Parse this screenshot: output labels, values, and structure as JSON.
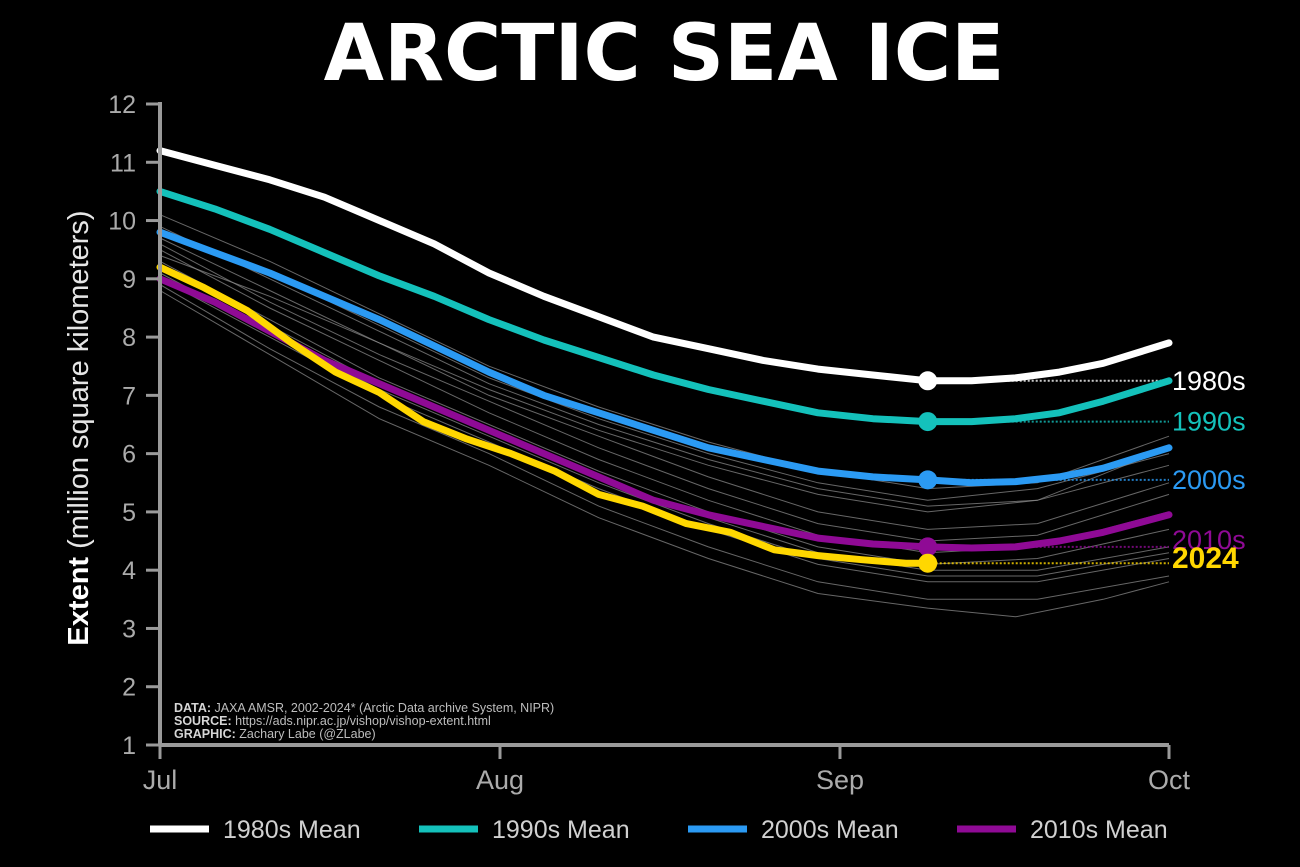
{
  "chart_data": {
    "type": "line",
    "title": "ARCTIC SEA ICE",
    "ylabel_bold": "Extent",
    "ylabel_rest": " (million square kilometers)",
    "ylim": [
      1,
      12
    ],
    "yticks": [
      1,
      2,
      3,
      4,
      5,
      6,
      7,
      8,
      9,
      10,
      11,
      12
    ],
    "xlim": [
      "Jul 1",
      "Oct 1"
    ],
    "xticks": [
      {
        "label": "Jul",
        "day": 0
      },
      {
        "label": "Aug",
        "day": 31
      },
      {
        "label": "Sep",
        "day": 62
      },
      {
        "label": "Oct",
        "day": 92
      }
    ],
    "x_unit": "days since Jul 1",
    "grid": false,
    "legend": "bottom",
    "series": [
      {
        "name": "1980s Mean",
        "end_label": "1980s",
        "color": "#ffffff",
        "marker_day": 70,
        "marker_value": 7.25,
        "points": [
          [
            0,
            11.2
          ],
          [
            5,
            10.95
          ],
          [
            10,
            10.7
          ],
          [
            15,
            10.4
          ],
          [
            20,
            10.0
          ],
          [
            25,
            9.6
          ],
          [
            30,
            9.1
          ],
          [
            35,
            8.7
          ],
          [
            40,
            8.35
          ],
          [
            45,
            8.0
          ],
          [
            50,
            7.8
          ],
          [
            55,
            7.6
          ],
          [
            60,
            7.45
          ],
          [
            65,
            7.35
          ],
          [
            70,
            7.25
          ],
          [
            74,
            7.25
          ],
          [
            78,
            7.3
          ],
          [
            82,
            7.4
          ],
          [
            86,
            7.55
          ],
          [
            92,
            7.9
          ]
        ]
      },
      {
        "name": "1990s Mean",
        "end_label": "1990s",
        "color": "#14c1bb",
        "marker_day": 70,
        "marker_value": 6.55,
        "points": [
          [
            0,
            10.5
          ],
          [
            5,
            10.2
          ],
          [
            10,
            9.85
          ],
          [
            15,
            9.45
          ],
          [
            20,
            9.05
          ],
          [
            25,
            8.7
          ],
          [
            30,
            8.3
          ],
          [
            35,
            7.95
          ],
          [
            40,
            7.65
          ],
          [
            45,
            7.35
          ],
          [
            50,
            7.1
          ],
          [
            55,
            6.9
          ],
          [
            60,
            6.7
          ],
          [
            65,
            6.6
          ],
          [
            70,
            6.55
          ],
          [
            74,
            6.55
          ],
          [
            78,
            6.6
          ],
          [
            82,
            6.7
          ],
          [
            86,
            6.9
          ],
          [
            92,
            7.25
          ]
        ]
      },
      {
        "name": "2000s Mean",
        "end_label": "2000s",
        "color": "#2b9af3",
        "marker_day": 70,
        "marker_value": 5.55,
        "points": [
          [
            0,
            9.8
          ],
          [
            5,
            9.45
          ],
          [
            10,
            9.1
          ],
          [
            15,
            8.7
          ],
          [
            20,
            8.3
          ],
          [
            25,
            7.85
          ],
          [
            30,
            7.4
          ],
          [
            35,
            7.0
          ],
          [
            40,
            6.7
          ],
          [
            45,
            6.4
          ],
          [
            50,
            6.1
          ],
          [
            55,
            5.9
          ],
          [
            60,
            5.7
          ],
          [
            65,
            5.6
          ],
          [
            70,
            5.55
          ],
          [
            74,
            5.5
          ],
          [
            78,
            5.52
          ],
          [
            82,
            5.6
          ],
          [
            86,
            5.75
          ],
          [
            92,
            6.1
          ]
        ]
      },
      {
        "name": "2010s Mean",
        "end_label": "2010s",
        "color": "#8f0a95",
        "marker_day": 70,
        "marker_value": 4.4,
        "points": [
          [
            0,
            9.0
          ],
          [
            5,
            8.6
          ],
          [
            10,
            8.1
          ],
          [
            15,
            7.6
          ],
          [
            20,
            7.2
          ],
          [
            25,
            6.8
          ],
          [
            30,
            6.4
          ],
          [
            35,
            6.0
          ],
          [
            40,
            5.6
          ],
          [
            45,
            5.2
          ],
          [
            50,
            4.95
          ],
          [
            55,
            4.75
          ],
          [
            60,
            4.55
          ],
          [
            65,
            4.45
          ],
          [
            70,
            4.4
          ],
          [
            74,
            4.38
          ],
          [
            78,
            4.4
          ],
          [
            82,
            4.5
          ],
          [
            86,
            4.65
          ],
          [
            92,
            4.95
          ]
        ]
      },
      {
        "name": "2024",
        "end_label": "2024",
        "color": "#ffd700",
        "marker_day": 70,
        "marker_value": 4.12,
        "points": [
          [
            0,
            9.2
          ],
          [
            4,
            8.85
          ],
          [
            8,
            8.45
          ],
          [
            12,
            7.9
          ],
          [
            16,
            7.4
          ],
          [
            20,
            7.05
          ],
          [
            24,
            6.55
          ],
          [
            28,
            6.25
          ],
          [
            32,
            6.0
          ],
          [
            36,
            5.7
          ],
          [
            40,
            5.3
          ],
          [
            44,
            5.1
          ],
          [
            48,
            4.8
          ],
          [
            52,
            4.65
          ],
          [
            56,
            4.35
          ],
          [
            60,
            4.25
          ],
          [
            64,
            4.18
          ],
          [
            68,
            4.12
          ],
          [
            70,
            4.12
          ]
        ]
      }
    ],
    "background_years_color": "#8a8a8a",
    "background_years": [
      [
        [
          0,
          10.1
        ],
        [
          10,
          9.3
        ],
        [
          20,
          8.4
        ],
        [
          30,
          7.5
        ],
        [
          40,
          6.8
        ],
        [
          50,
          6.2
        ],
        [
          60,
          5.7
        ],
        [
          70,
          5.4
        ],
        [
          80,
          5.5
        ],
        [
          92,
          6.3
        ]
      ],
      [
        [
          0,
          9.9
        ],
        [
          10,
          9.0
        ],
        [
          20,
          8.1
        ],
        [
          30,
          7.2
        ],
        [
          40,
          6.5
        ],
        [
          50,
          5.9
        ],
        [
          60,
          5.4
        ],
        [
          70,
          5.1
        ],
        [
          80,
          5.2
        ],
        [
          92,
          5.8
        ]
      ],
      [
        [
          0,
          9.7
        ],
        [
          10,
          8.8
        ],
        [
          20,
          7.9
        ],
        [
          30,
          7.0
        ],
        [
          40,
          6.3
        ],
        [
          50,
          5.6
        ],
        [
          60,
          5.0
        ],
        [
          70,
          4.7
        ],
        [
          80,
          4.8
        ],
        [
          92,
          5.5
        ]
      ],
      [
        [
          0,
          9.6
        ],
        [
          10,
          8.6
        ],
        [
          20,
          7.7
        ],
        [
          30,
          6.9
        ],
        [
          40,
          6.1
        ],
        [
          50,
          5.4
        ],
        [
          60,
          4.8
        ],
        [
          70,
          4.5
        ],
        [
          80,
          4.6
        ],
        [
          92,
          5.3
        ]
      ],
      [
        [
          0,
          9.5
        ],
        [
          10,
          8.5
        ],
        [
          20,
          7.6
        ],
        [
          30,
          6.7
        ],
        [
          40,
          5.9
        ],
        [
          50,
          5.2
        ],
        [
          60,
          4.6
        ],
        [
          70,
          4.3
        ],
        [
          80,
          4.4
        ],
        [
          92,
          5.0
        ]
      ],
      [
        [
          0,
          9.3
        ],
        [
          10,
          8.3
        ],
        [
          20,
          7.3
        ],
        [
          30,
          6.5
        ],
        [
          40,
          5.7
        ],
        [
          50,
          5.0
        ],
        [
          60,
          4.4
        ],
        [
          70,
          4.1
        ],
        [
          80,
          4.2
        ],
        [
          92,
          4.7
        ]
      ],
      [
        [
          0,
          9.2
        ],
        [
          10,
          8.2
        ],
        [
          20,
          7.2
        ],
        [
          30,
          6.4
        ],
        [
          40,
          5.6
        ],
        [
          50,
          4.9
        ],
        [
          60,
          4.3
        ],
        [
          70,
          4.0
        ],
        [
          80,
          4.0
        ],
        [
          92,
          4.4
        ]
      ],
      [
        [
          0,
          9.0
        ],
        [
          10,
          8.0
        ],
        [
          20,
          7.0
        ],
        [
          30,
          6.2
        ],
        [
          40,
          5.4
        ],
        [
          50,
          4.7
        ],
        [
          60,
          4.1
        ],
        [
          70,
          3.8
        ],
        [
          80,
          3.8
        ],
        [
          92,
          4.2
        ]
      ],
      [
        [
          0,
          8.9
        ],
        [
          10,
          7.8
        ],
        [
          20,
          6.8
        ],
        [
          30,
          6.0
        ],
        [
          40,
          5.1
        ],
        [
          50,
          4.4
        ],
        [
          60,
          3.8
        ],
        [
          70,
          3.5
        ],
        [
          80,
          3.5
        ],
        [
          92,
          3.9
        ]
      ],
      [
        [
          0,
          8.8
        ],
        [
          10,
          7.7
        ],
        [
          20,
          6.6
        ],
        [
          30,
          5.8
        ],
        [
          40,
          4.9
        ],
        [
          50,
          4.2
        ],
        [
          60,
          3.6
        ],
        [
          70,
          3.35
        ],
        [
          78,
          3.2
        ],
        [
          86,
          3.5
        ],
        [
          92,
          3.8
        ]
      ],
      [
        [
          0,
          9.4
        ],
        [
          10,
          8.7
        ],
        [
          20,
          7.9
        ],
        [
          30,
          7.1
        ],
        [
          40,
          6.4
        ],
        [
          50,
          5.8
        ],
        [
          60,
          5.3
        ],
        [
          70,
          5.0
        ],
        [
          80,
          5.2
        ],
        [
          92,
          6.1
        ]
      ],
      [
        [
          0,
          9.8
        ],
        [
          10,
          9.1
        ],
        [
          20,
          8.2
        ],
        [
          30,
          7.3
        ],
        [
          40,
          6.6
        ],
        [
          50,
          6.0
        ],
        [
          60,
          5.5
        ],
        [
          70,
          5.2
        ],
        [
          80,
          5.4
        ],
        [
          92,
          6.0
        ]
      ],
      [
        [
          0,
          9.1
        ],
        [
          10,
          8.1
        ],
        [
          20,
          7.1
        ],
        [
          30,
          6.3
        ],
        [
          40,
          5.5
        ],
        [
          50,
          4.8
        ],
        [
          60,
          4.2
        ],
        [
          70,
          3.9
        ],
        [
          80,
          3.9
        ],
        [
          92,
          4.3
        ]
      ]
    ],
    "credits": [
      {
        "label": "DATA:",
        "text": " JAXA AMSR, 2002-2024* (Arctic Data archive System, NIPR)"
      },
      {
        "label": "SOURCE:",
        "text": " https://ads.nipr.ac.jp/vishop/vishop-extent.html"
      },
      {
        "label": "GRAPHIC:",
        "text": " Zachary Labe (@ZLabe)"
      }
    ]
  }
}
